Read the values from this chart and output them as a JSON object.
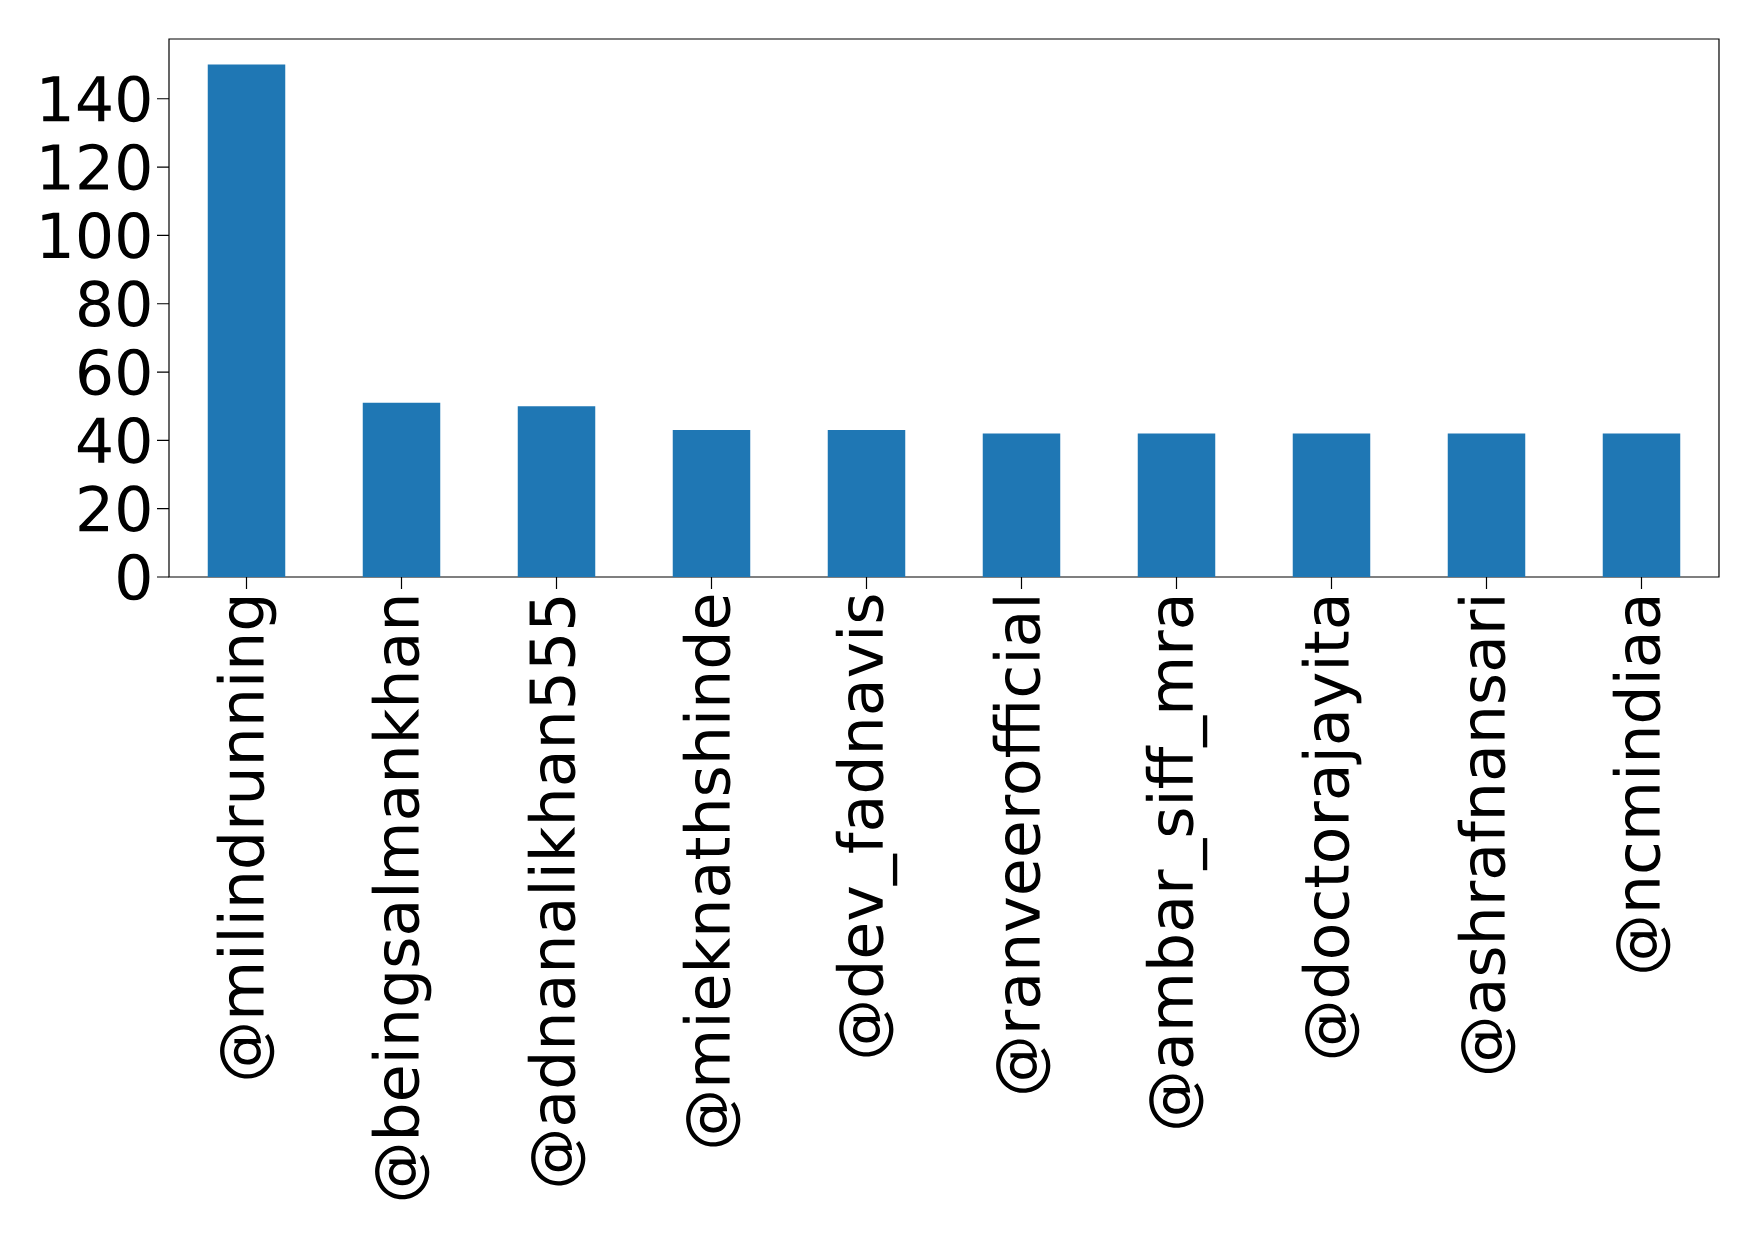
{
  "chart_data": {
    "type": "bar",
    "categories": [
      "@milindrunning",
      "@beingsalmankhan",
      "@adnanalikhan555",
      "@mieknathshinde",
      "@dev_fadnavis",
      "@ranveerofficial",
      "@ambar_siff_mra",
      "@doctorajayita",
      "@ashrafnansari",
      "@ncmindiaa"
    ],
    "values": [
      150,
      51,
      50,
      43,
      43,
      42,
      42,
      42,
      42,
      42
    ],
    "color": "#1f77b4",
    "ylim": [
      0,
      157.5
    ],
    "yticks": [
      0,
      20,
      40,
      60,
      80,
      100,
      120,
      140
    ],
    "grid": false
  }
}
